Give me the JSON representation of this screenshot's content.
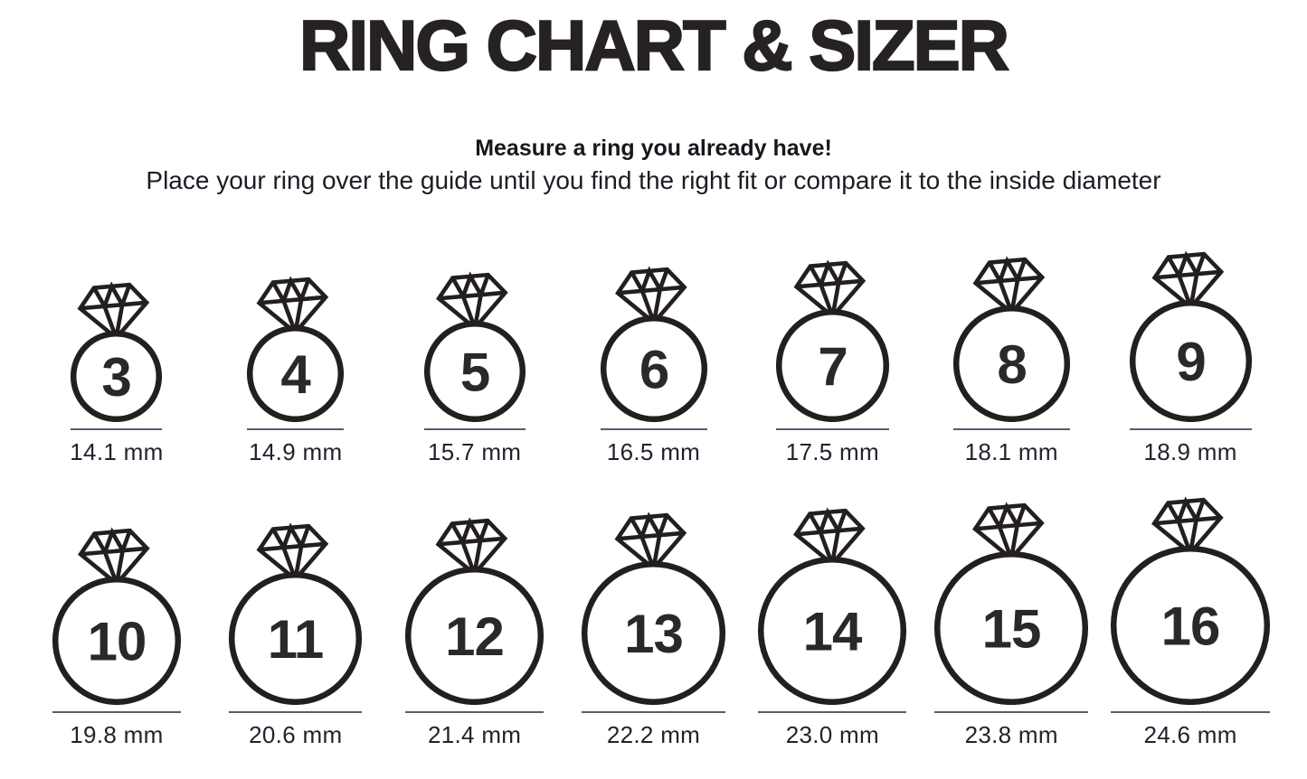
{
  "page": {
    "title": "RING CHART & SIZER",
    "subtitle_bold": "Measure a ring you already have!",
    "subtitle": "Place your ring over the guide until you find the right fit or compare it to the inside diameter"
  },
  "colors": {
    "ink": "#231f20",
    "number": "#2b282c",
    "label": "#22222e",
    "underline": "#5b5b6e"
  },
  "rings": {
    "row1": [
      {
        "size": "3",
        "inside_diameter": "14.1 mm"
      },
      {
        "size": "4",
        "inside_diameter": "14.9 mm"
      },
      {
        "size": "5",
        "inside_diameter": "15.7 mm"
      },
      {
        "size": "6",
        "inside_diameter": "16.5 mm"
      },
      {
        "size": "7",
        "inside_diameter": "17.5 mm"
      },
      {
        "size": "8",
        "inside_diameter": "18.1 mm"
      },
      {
        "size": "9",
        "inside_diameter": "18.9 mm"
      }
    ],
    "row2": [
      {
        "size": "10",
        "inside_diameter": "19.8 mm"
      },
      {
        "size": "11",
        "inside_diameter": "20.6 mm"
      },
      {
        "size": "12",
        "inside_diameter": "21.4 mm"
      },
      {
        "size": "13",
        "inside_diameter": "22.2 mm"
      },
      {
        "size": "14",
        "inside_diameter": "23.0 mm"
      },
      {
        "size": "15",
        "inside_diameter": "23.8 mm"
      },
      {
        "size": "16",
        "inside_diameter": "24.6 mm"
      }
    ]
  }
}
